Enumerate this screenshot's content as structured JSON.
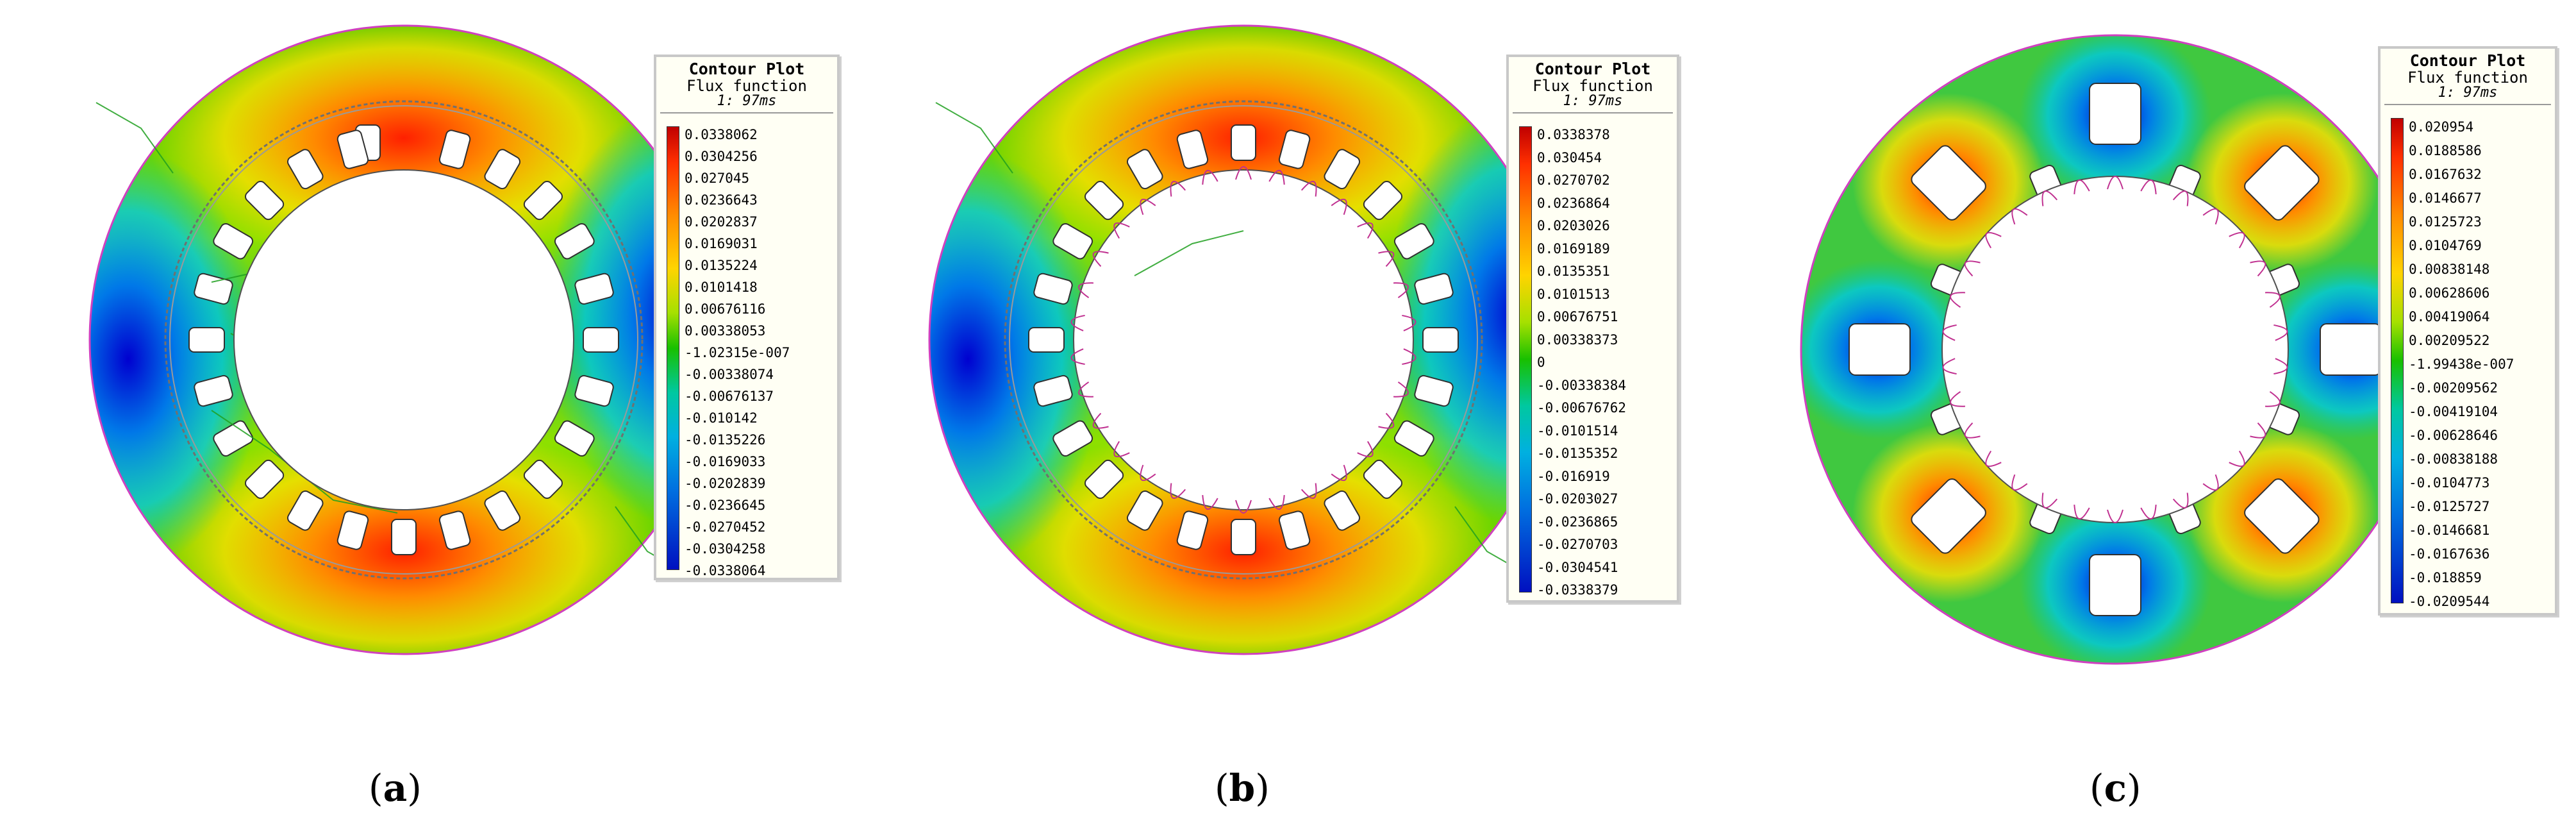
{
  "legend_common": {
    "title": "Contour Plot",
    "subtitle": "Flux function",
    "time": "1: 97ms"
  },
  "panels": [
    {
      "caption_open": "(",
      "caption_letter": "a",
      "caption_close": ")",
      "values": [
        "0.0338062",
        "0.0304256",
        "0.027045",
        "0.0236643",
        "0.0202837",
        "0.0169031",
        "0.0135224",
        "0.0101418",
        "0.00676116",
        "0.00338053",
        "-1.02315e-007",
        "-0.00338074",
        "-0.00676137",
        "-0.010142",
        "-0.0135226",
        "-0.0169033",
        "-0.0202839",
        "-0.0236645",
        "-0.0270452",
        "-0.0304258",
        "-0.0338064"
      ]
    },
    {
      "caption_open": "(",
      "caption_letter": "b",
      "caption_close": ")",
      "values": [
        "0.0338378",
        "0.030454",
        "0.0270702",
        "0.0236864",
        "0.0203026",
        "0.0169189",
        "0.0135351",
        "0.0101513",
        "0.00676751",
        "0.00338373",
        "0",
        "-0.00338384",
        "-0.00676762",
        "-0.0101514",
        "-0.0135352",
        "-0.016919",
        "-0.0203027",
        "-0.0236865",
        "-0.0270703",
        "-0.0304541",
        "-0.0338379"
      ]
    },
    {
      "caption_open": "(",
      "caption_letter": "c",
      "caption_close": ")",
      "values": [
        "0.020954",
        "0.0188586",
        "0.0167632",
        "0.0146677",
        "0.0125723",
        "0.0104769",
        "0.00838148",
        "0.00628606",
        "0.00419064",
        "0.00209522",
        "-1.99438e-007",
        "-0.00209562",
        "-0.00419104",
        "-0.00628646",
        "-0.00838188",
        "-0.0104773",
        "-0.0125727",
        "-0.0146681",
        "-0.0167636",
        "-0.018859",
        "-0.0209544"
      ]
    }
  ],
  "colors": {
    "frame_circle": "#d040c0",
    "flux_line_green": "#20a020",
    "slot_outline": "#c03090"
  }
}
